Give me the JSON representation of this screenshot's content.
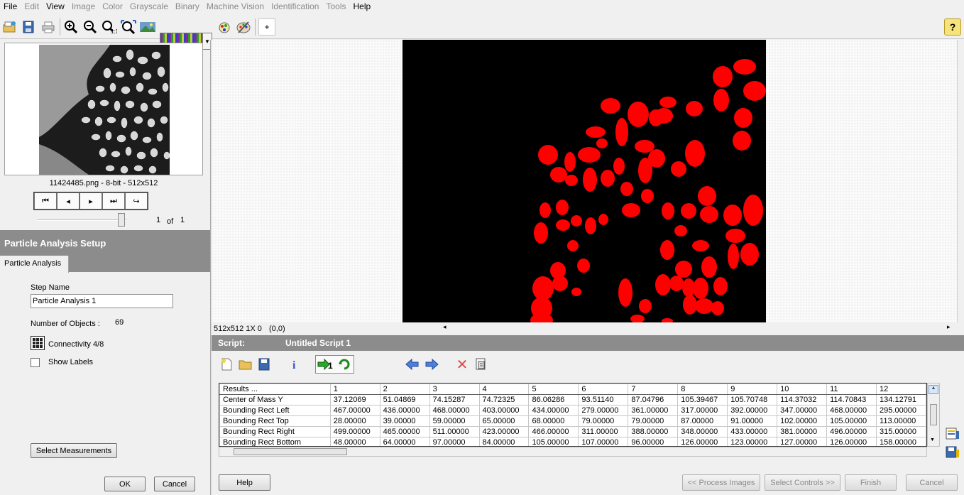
{
  "menu": [
    "File",
    "Edit",
    "View",
    "Image",
    "Color",
    "Grayscale",
    "Binary",
    "Machine Vision",
    "Identification",
    "Tools",
    "Help"
  ],
  "menu_enabled": [
    true,
    false,
    true,
    false,
    false,
    false,
    false,
    false,
    false,
    false,
    true
  ],
  "image_info": "11424485.png - 8-bit - 512x512",
  "image_index": "1",
  "image_of": "of",
  "image_total": "1",
  "setup_title": "Particle Analysis Setup",
  "tab_label": "Particle Analysis",
  "step_name_label": "Step Name",
  "step_name_value": "Particle Analysis 1",
  "num_objects_label": "Number of Objects :",
  "num_objects_value": "69",
  "connectivity_label": "Connectivity 4/8",
  "show_labels_label": "Show Labels",
  "show_labels_checked": false,
  "select_measurements": "Select Measurements",
  "ok": "OK",
  "cancel_left": "Cancel",
  "viewer_status": "512x512 1X 0",
  "viewer_coords": "(0,0)",
  "script_label": "Script:",
  "script_name": "Untitled Script 1",
  "colors": {
    "particle": "#ff0000",
    "panel_bar": "#8c8c8c"
  },
  "results": {
    "header": [
      "Results ...",
      "1",
      "2",
      "3",
      "4",
      "5",
      "6",
      "7",
      "8",
      "9",
      "10",
      "11",
      "12"
    ],
    "rows": [
      [
        "Center of Mass Y",
        "37.12069",
        "51.04869",
        "74.15287",
        "74.72325",
        "86.06286",
        "93.51140",
        "87.04796",
        "105.39467",
        "105.70748",
        "114.37032",
        "114.70843",
        "134.12791"
      ],
      [
        "Bounding Rect Left",
        "467.00000",
        "436.00000",
        "468.00000",
        "403.00000",
        "434.00000",
        "279.00000",
        "361.00000",
        "317.00000",
        "392.00000",
        "347.00000",
        "468.00000",
        "295.00000"
      ],
      [
        "Bounding Rect Top",
        "28.00000",
        "39.00000",
        "59.00000",
        "65.00000",
        "68.00000",
        "79.00000",
        "79.00000",
        "87.00000",
        "91.00000",
        "102.00000",
        "105.00000",
        "113.00000"
      ],
      [
        "Bounding Rect Right",
        "499.00000",
        "465.00000",
        "511.00000",
        "423.00000",
        "466.00000",
        "311.00000",
        "388.00000",
        "348.00000",
        "433.00000",
        "381.00000",
        "496.00000",
        "315.00000"
      ],
      [
        "Bounding Rect Bottom",
        "48.00000",
        "64.00000",
        "97.00000",
        "84.00000",
        "105.00000",
        "107.00000",
        "96.00000",
        "126.00000",
        "123.00000",
        "127.00000",
        "126.00000",
        "158.00000"
      ]
    ]
  },
  "bottom_buttons": {
    "help": "Help",
    "process_images": "<< Process Images",
    "select_controls": "Select Controls >>",
    "finish": "Finish",
    "cancel": "Cancel"
  },
  "icons": {
    "help_icon": "?",
    "crosshair": "+"
  }
}
